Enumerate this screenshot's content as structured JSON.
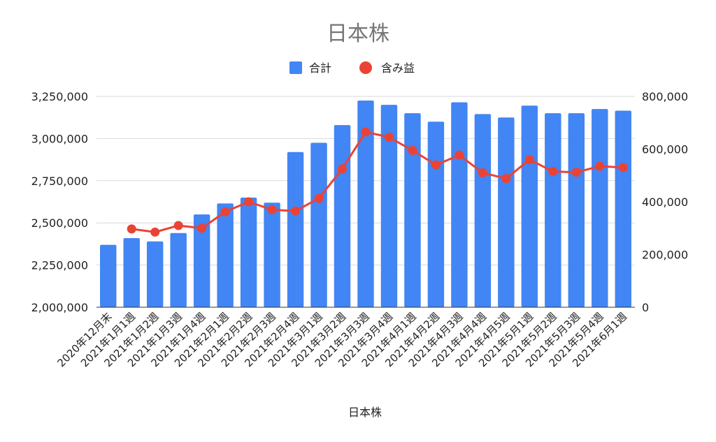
{
  "chart_data": {
    "type": "bar",
    "title": "日本株",
    "xlabel": "日本株",
    "ylabel": "",
    "y2label": "",
    "categories": [
      "2020年12月末",
      "2021年1月1週",
      "2021年1月2週",
      "2021年1月3週",
      "2021年1月4週",
      "2021年2月1週",
      "2021年2月2週",
      "2021年2月3週",
      "2021年2月4週",
      "2021年3月1週",
      "2021年3月2週",
      "2021年3月3週",
      "2021年3月4週",
      "2021年4月1週",
      "2021年4月2週",
      "2021年4月3週",
      "2021年4月4週",
      "2021年4月5週",
      "2021年5月1週",
      "2021年5月2週",
      "2021年5月3週",
      "2021年5月4週",
      "2021年6月1週"
    ],
    "series": [
      {
        "name": "合計",
        "type": "bar",
        "axis": "left",
        "color": "#4285f4",
        "values": [
          2370000,
          2410000,
          2390000,
          2440000,
          2550000,
          2615000,
          2650000,
          2620000,
          2920000,
          2975000,
          3080000,
          3225000,
          3200000,
          3150000,
          3100000,
          3215000,
          3145000,
          3125000,
          3195000,
          3150000,
          3150000,
          3175000,
          3165000
        ]
      },
      {
        "name": "含み益",
        "type": "line",
        "axis": "right",
        "color": "#ea4335",
        "values": [
          null,
          297000,
          285000,
          310000,
          300000,
          362000,
          400000,
          370000,
          365000,
          413000,
          525000,
          665000,
          645000,
          595000,
          540000,
          577000,
          510000,
          488000,
          560000,
          515000,
          512000,
          535000,
          530000
        ]
      }
    ],
    "ylim": [
      2000000,
      3250000
    ],
    "y2lim": [
      0,
      800000
    ],
    "yticks": [
      "2,000,000",
      "2,250,000",
      "2,500,000",
      "2,750,000",
      "3,000,000",
      "3,250,000"
    ],
    "y2ticks": [
      "0",
      "200,000",
      "400,000",
      "600,000",
      "800,000"
    ],
    "grid": true,
    "legend": "top-center"
  }
}
